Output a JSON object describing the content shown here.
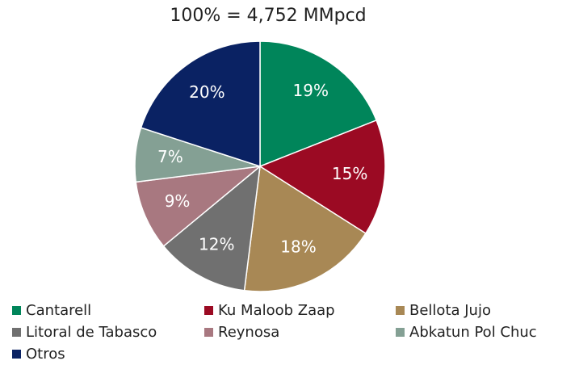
{
  "chart_data": {
    "type": "pie",
    "title": "100% = 4,752 MMpcd",
    "categories": [
      "Cantarell",
      "Ku Maloob Zaap",
      "Bellota Jujo",
      "Litoral de Tabasco",
      "Reynosa",
      "Abkatun Pol Chuc",
      "Otros"
    ],
    "values": [
      19,
      15,
      18,
      12,
      9,
      7,
      20
    ],
    "value_labels": [
      "19%",
      "15%",
      "18%",
      "12%",
      "9%",
      "7%",
      "20%"
    ],
    "colors": [
      "#00855a",
      "#9b0a23",
      "#a88855",
      "#707070",
      "#a87880",
      "#84a094",
      "#0a2263"
    ],
    "legend": "bottom"
  }
}
